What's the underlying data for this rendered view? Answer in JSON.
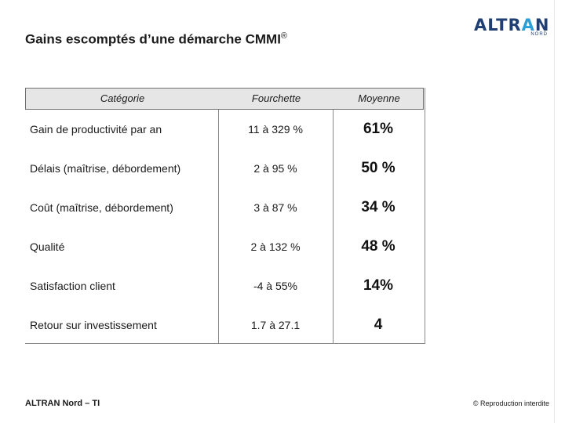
{
  "slide": {
    "title": "Gains escomptés d’une démarche CMMI",
    "title_mark": "®"
  },
  "logo": {
    "word_main": "ALTR",
    "word_accent": "A",
    "word_end": "N",
    "sub": "NORD"
  },
  "table": {
    "headers": {
      "category": "Catégorie",
      "range": "Fourchette",
      "average": "Moyenne"
    },
    "rows": [
      {
        "category": "Gain de productivité par an",
        "range": "11 à 329 %",
        "average": "61%"
      },
      {
        "category": "Délais (maîtrise, débordement)",
        "range": "2 à 95 %",
        "average": "50 %"
      },
      {
        "category": "Coût (maîtrise, débordement)",
        "range": "3 à 87 %",
        "average": "34 %"
      },
      {
        "category": "Qualité",
        "range": "2 à 132 %",
        "average": "48 %"
      },
      {
        "category": "Satisfaction client",
        "range": "-4 à 55%",
        "average": "14%"
      },
      {
        "category": "Retour sur investissement",
        "range": "1.7 à 27.1",
        "average": "4"
      }
    ]
  },
  "footer": {
    "left": "ALTRAN Nord – TI",
    "right": "© Reproduction interdite"
  },
  "colors": {
    "brand_dark": "#1f3f73",
    "brand_accent": "#2aa0d8",
    "header_bg": "#e6e6e6"
  }
}
